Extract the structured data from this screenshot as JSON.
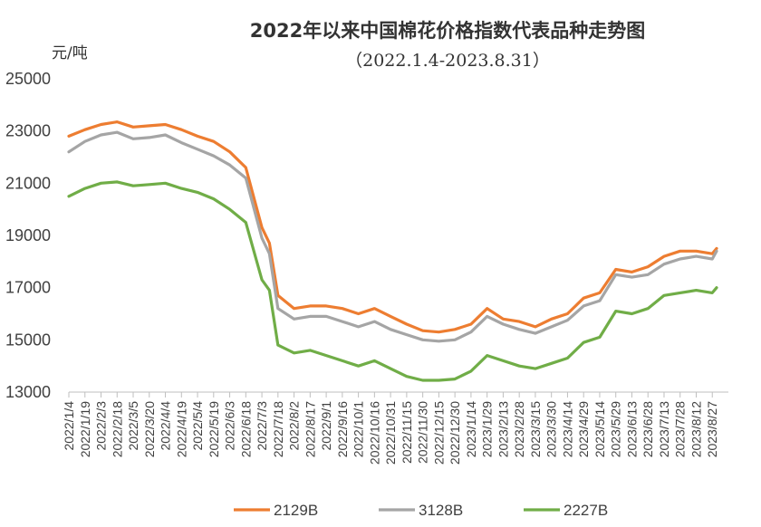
{
  "chart_data": {
    "type": "line",
    "title": "2022年以来中国棉花价格指数代表品种走势图",
    "subtitle": "（2022.1.4-2023.8.31）",
    "ylabel": "元/吨",
    "xlabel": "",
    "ylim": [
      13000,
      25000
    ],
    "yticks": [
      13000,
      15000,
      17000,
      19000,
      21000,
      23000,
      25000
    ],
    "grid": false,
    "legend_position": "bottom",
    "x_ticks": [
      "2022/1/4",
      "2022/1/19",
      "2022/2/3",
      "2022/2/18",
      "2022/3/5",
      "2022/3/20",
      "2022/4/4",
      "2022/4/19",
      "2022/5/4",
      "2022/5/19",
      "2022/6/3",
      "2022/6/18",
      "2022/7/3",
      "2022/7/18",
      "2022/8/2",
      "2022/8/17",
      "2022/9/1",
      "2022/9/16",
      "2022/10/1",
      "2022/10/16",
      "2022/10/31",
      "2022/11/15",
      "2022/11/30",
      "2022/12/15",
      "2022/12/30",
      "2023/1/14",
      "2023/1/29",
      "2023/2/13",
      "2023/2/28",
      "2023/3/15",
      "2023/3/30",
      "2023/4/14",
      "2023/4/29",
      "2023/5/14",
      "2023/5/29",
      "2023/6/13",
      "2023/6/28",
      "2023/7/13",
      "2023/7/28",
      "2023/8/12",
      "2023/8/27"
    ],
    "x": [
      "2022/1/4",
      "2022/1/19",
      "2022/2/3",
      "2022/2/18",
      "2022/3/5",
      "2022/3/20",
      "2022/4/4",
      "2022/4/19",
      "2022/5/4",
      "2022/5/19",
      "2022/6/3",
      "2022/6/18",
      "2022/7/3",
      "2022/7/10",
      "2022/7/18",
      "2022/8/2",
      "2022/8/17",
      "2022/9/1",
      "2022/9/16",
      "2022/10/1",
      "2022/10/16",
      "2022/10/31",
      "2022/11/15",
      "2022/11/30",
      "2022/12/15",
      "2022/12/30",
      "2023/1/14",
      "2023/1/29",
      "2023/2/13",
      "2023/2/28",
      "2023/3/15",
      "2023/3/30",
      "2023/4/14",
      "2023/4/29",
      "2023/5/14",
      "2023/5/29",
      "2023/6/13",
      "2023/6/28",
      "2023/7/13",
      "2023/7/28",
      "2023/8/12",
      "2023/8/27",
      "2023/8/31"
    ],
    "series": [
      {
        "name": "2129B",
        "color": "#ED7D31",
        "values": [
          22800,
          23050,
          23250,
          23350,
          23150,
          23200,
          23250,
          23050,
          22800,
          22600,
          22200,
          21600,
          19300,
          18700,
          16700,
          16200,
          16300,
          16300,
          16200,
          16000,
          16200,
          15900,
          15600,
          15350,
          15300,
          15400,
          15600,
          16200,
          15800,
          15700,
          15500,
          15800,
          16000,
          16600,
          16800,
          17700,
          17600,
          17800,
          18200,
          18400,
          18400,
          18300,
          18500
        ]
      },
      {
        "name": "3128B",
        "color": "#A5A5A5",
        "values": [
          22200,
          22600,
          22850,
          22950,
          22700,
          22750,
          22850,
          22550,
          22300,
          22050,
          21700,
          21200,
          18900,
          18300,
          16200,
          15800,
          15900,
          15900,
          15700,
          15500,
          15700,
          15400,
          15200,
          15000,
          14950,
          15000,
          15300,
          15900,
          15600,
          15400,
          15250,
          15500,
          15750,
          16300,
          16500,
          17500,
          17400,
          17500,
          17900,
          18100,
          18200,
          18100,
          18400
        ]
      },
      {
        "name": "2227B",
        "color": "#70AD47",
        "values": [
          20500,
          20800,
          21000,
          21050,
          20900,
          20950,
          21000,
          20800,
          20650,
          20400,
          20000,
          19500,
          17300,
          16900,
          14800,
          14500,
          14600,
          14400,
          14200,
          14000,
          14200,
          13900,
          13600,
          13450,
          13450,
          13500,
          13800,
          14400,
          14200,
          14000,
          13900,
          14100,
          14300,
          14900,
          15100,
          16100,
          16000,
          16200,
          16700,
          16800,
          16900,
          16800,
          17000
        ]
      }
    ]
  }
}
